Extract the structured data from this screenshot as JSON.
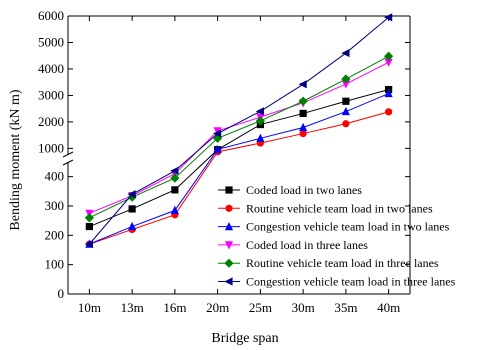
{
  "chart_data": {
    "type": "line",
    "xlabel": "Bridge span",
    "ylabel": "Bending moment (kN m)",
    "categories": [
      "10m",
      "13m",
      "16m",
      "20m",
      "25m",
      "30m",
      "35m",
      "40m"
    ],
    "y_axis": {
      "broken": true,
      "lower": {
        "min": 0,
        "max": 450,
        "ticks": [
          0,
          100,
          200,
          300,
          400
        ]
      },
      "upper": {
        "min": 750,
        "max": 6000,
        "ticks": [
          1000,
          2000,
          3000,
          4000,
          5000,
          6000
        ]
      }
    },
    "grid": false,
    "legend_placement": "bottom-right",
    "series": [
      {
        "name": "Coded load in two lanes",
        "color": "#000000",
        "marker": "square",
        "values": [
          230,
          290,
          355,
          950,
          1900,
          2320,
          2780,
          3220
        ]
      },
      {
        "name": "Routine vehicle team load in two lanes",
        "color": "#ff0000",
        "marker": "circle",
        "values": [
          170,
          220,
          270,
          870,
          1200,
          1560,
          1930,
          2380
        ]
      },
      {
        "name": "Congestion vehicle team load in two lanes",
        "color": "#0000ff",
        "marker": "triangle-up",
        "values": [
          170,
          230,
          285,
          960,
          1380,
          1790,
          2390,
          3070
        ]
      },
      {
        "name": "Coded load in three lanes",
        "color": "#ff00ff",
        "marker": "triangle-down",
        "values": [
          275,
          335,
          410,
          1660,
          2180,
          2720,
          3430,
          4250
        ]
      },
      {
        "name": "Routine vehicle team load in three lanes",
        "color": "#008000",
        "marker": "diamond",
        "values": [
          260,
          330,
          395,
          1380,
          2040,
          2780,
          3620,
          4480
        ]
      },
      {
        "name": "Congestion vehicle team load in three lanes",
        "color": "#000080",
        "marker": "triangle-left",
        "values": [
          170,
          340,
          420,
          1560,
          2400,
          3420,
          4600,
          5950
        ]
      }
    ]
  }
}
